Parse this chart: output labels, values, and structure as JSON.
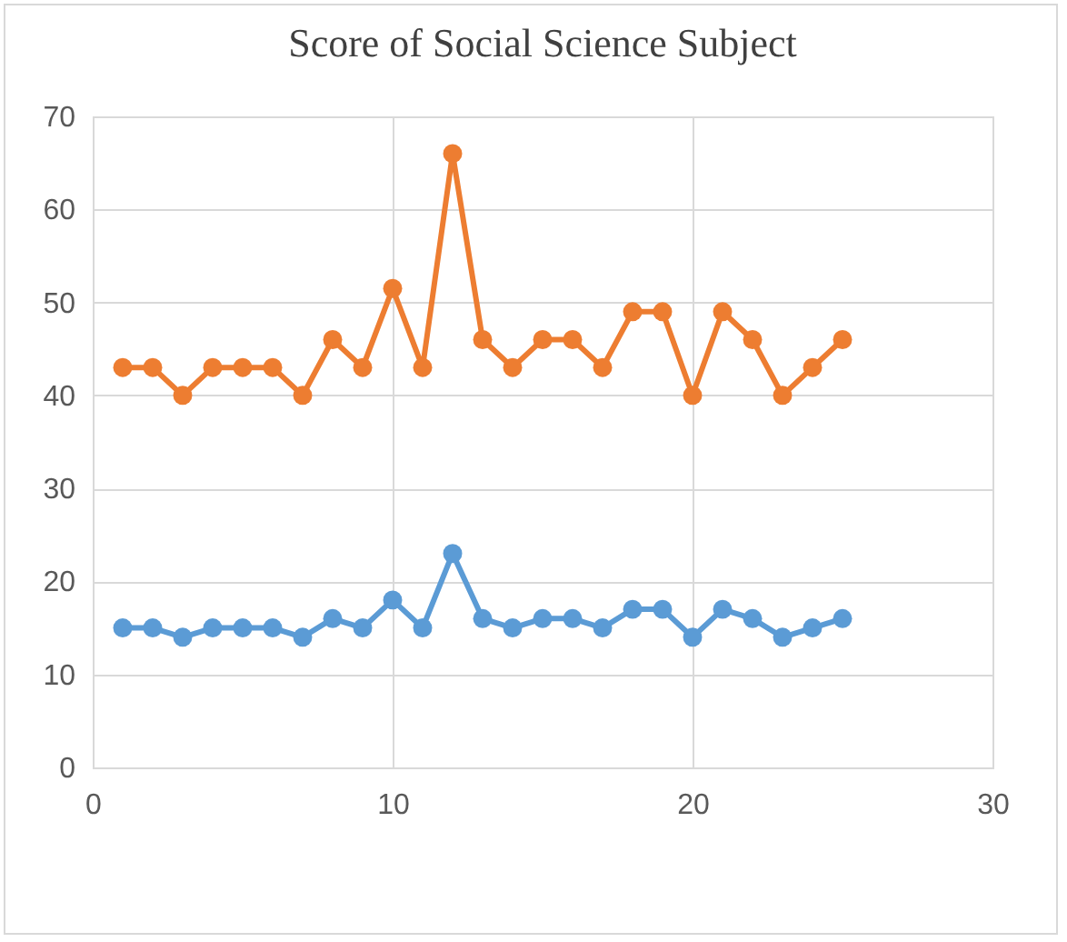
{
  "chart_data": {
    "type": "line",
    "title": "Score of Social Science Subject",
    "x": [
      1,
      2,
      3,
      4,
      5,
      6,
      7,
      8,
      9,
      10,
      11,
      12,
      13,
      14,
      15,
      16,
      17,
      18,
      19,
      20,
      21,
      22,
      23,
      24,
      25
    ],
    "series": [
      {
        "color": "#5b9bd5",
        "values": [
          15,
          15,
          14,
          15,
          15,
          15,
          14,
          16,
          15,
          18,
          15,
          23,
          16,
          15,
          16,
          16,
          15,
          17,
          17,
          14,
          17,
          16,
          14,
          15,
          16
        ]
      },
      {
        "color": "#ed7d31",
        "values": [
          43,
          43,
          40,
          43,
          43,
          43,
          40,
          46,
          43,
          51.5,
          43,
          66,
          46,
          43,
          46,
          46,
          43,
          49,
          49,
          40,
          49,
          46,
          40,
          43,
          46
        ]
      }
    ],
    "xlim": [
      0,
      30
    ],
    "xticks": [
      0,
      10,
      20,
      30
    ],
    "ylim": [
      0,
      70
    ],
    "yticks": [
      0,
      10,
      20,
      30,
      40,
      50,
      60,
      70
    ],
    "grid": true,
    "marker": "circle",
    "line_style": "solid"
  }
}
